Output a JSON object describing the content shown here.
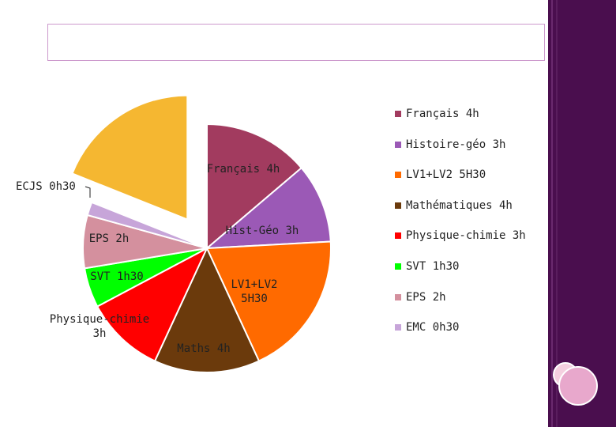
{
  "title_box": {
    "text": ""
  },
  "chart_data": {
    "type": "pie",
    "title": "",
    "unit": "hours",
    "slices": [
      {
        "label": "Français 4h",
        "legend": "Français  4h",
        "value": 4.0,
        "color": "#a23b5f",
        "exploded": false
      },
      {
        "label": "Hist-Géo 3h",
        "legend": "Histoire-géo 3h",
        "value": 3.0,
        "color": "#9b59b6",
        "exploded": false
      },
      {
        "label": "LV1+LV2\n5H30",
        "legend": "LV1+LV2 5H30",
        "value": 5.5,
        "color": "#ff6a00",
        "exploded": false
      },
      {
        "label": "Maths 4h",
        "legend": "Mathématiques 4h",
        "value": 4.0,
        "color": "#6b3a0c",
        "exploded": false
      },
      {
        "label": "Physique-chimie\n3h",
        "legend": "Physique-chimie 3h",
        "value": 3.0,
        "color": "#ff0000",
        "exploded": false
      },
      {
        "label": "SVT 1h30",
        "legend": "SVT 1h30",
        "value": 1.5,
        "color": "#00ff00",
        "exploded": false
      },
      {
        "label": "EPS 2h",
        "legend": "EPS 2h",
        "value": 2.0,
        "color": "#d4909e",
        "exploded": false
      },
      {
        "label": "ECJS 0h30",
        "legend": "EMC 0h30",
        "value": 0.5,
        "color": "#c7a5d9",
        "exploded": false
      },
      {
        "label": "",
        "legend": "",
        "value": 5.5,
        "color": "#f5b731",
        "exploded": true
      }
    ],
    "legend_position": "right"
  },
  "colors": {
    "sidebar": "#4a0e4e",
    "title_border": "#cc99cc"
  }
}
